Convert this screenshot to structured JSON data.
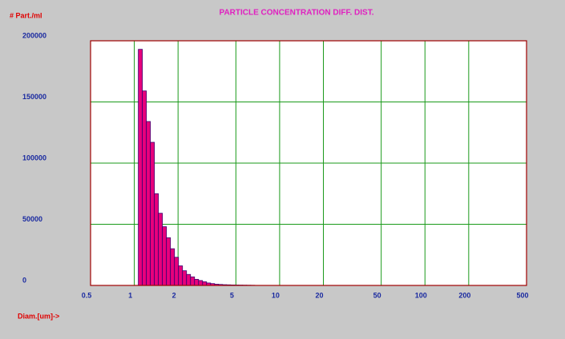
{
  "chart_data": {
    "type": "histogram",
    "title": "PARTICLE CONCENTRATION DIFF. DIST.",
    "y_label": "# Part./ml",
    "x_label": "Diam.[um]->",
    "bins": [
      1.066,
      1.136,
      1.211,
      1.29,
      1.375,
      1.465,
      1.561,
      1.664,
      1.773,
      1.89,
      2.014,
      2.146,
      2.287,
      2.437,
      2.597,
      2.768,
      2.95,
      3.143,
      3.35,
      3.57,
      3.804,
      4.054,
      4.32,
      4.604,
      4.906,
      5.229,
      5.572,
      5.938,
      6.328,
      6.744
    ],
    "counts": [
      193000,
      159000,
      134000,
      117000,
      75000,
      59000,
      48000,
      39000,
      30000,
      23000,
      16000,
      12000,
      9000,
      7000,
      5000,
      4000,
      3000,
      2000,
      1500,
      1000,
      800,
      600,
      500,
      400,
      350,
      300,
      250,
      200,
      150
    ],
    "color": "#e8007c",
    "edge_color": "#3a0070",
    "xlim": [
      0.5,
      500
    ],
    "xscale": "log",
    "xticks": [
      0.5,
      1,
      2,
      5,
      10,
      20,
      50,
      100,
      200,
      500
    ],
    "ylim": [
      0,
      200000
    ],
    "yticks": [
      0,
      50000,
      100000,
      150000,
      200000
    ],
    "grid": true
  }
}
